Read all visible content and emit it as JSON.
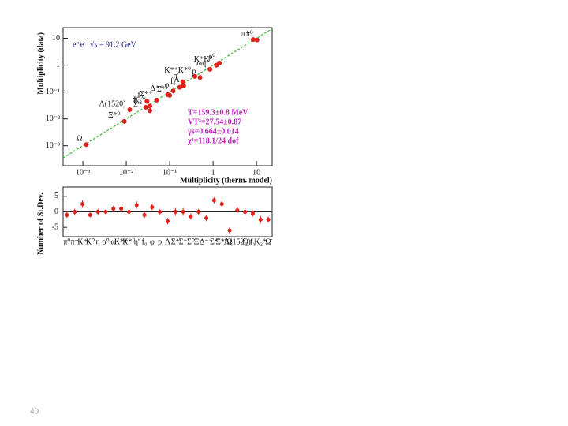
{
  "page_number": "40",
  "chart_data": [
    {
      "type": "scatter",
      "title": "e⁺e⁻ √s = 91.2 GeV",
      "x_label": "Multiplicity (therm. model)",
      "y_label": "Multiplicity (data)",
      "annotations": [
        "T=159.3±0.8 MeV",
        "VT³=27.54±0.87",
        "γs=0.664±0.014",
        "χ²=118.1/24 dof"
      ],
      "xscale": "log",
      "yscale": "log",
      "xlim": [
        0.00035,
        23
      ],
      "ylim": [
        0.00018,
        25
      ],
      "xticks": [
        {
          "value": 0.001,
          "label": "10⁻³"
        },
        {
          "value": 0.01,
          "label": "10⁻²"
        },
        {
          "value": 0.1,
          "label": "10⁻¹"
        },
        1,
        10
      ],
      "yticks": [
        {
          "value": 0.001,
          "label": "10⁻³"
        },
        {
          "value": 0.01,
          "label": "10⁻²"
        },
        {
          "value": 0.1,
          "label": "10⁻¹"
        },
        1,
        10
      ],
      "color": "#e0201b",
      "line_color": "#3cb832",
      "labels": [
        "π⁺",
        "π⁰",
        "K⁺K⁰",
        "ρ⁰",
        "ωη",
        "K*⁺K*⁰",
        "η'",
        "p",
        "Λ",
        "f₀",
        "φ",
        "Σ⁺",
        "Δ⁺⁺",
        "Σ*⁺",
        "K₂*",
        "f₂",
        "Ξ⁻",
        "Σ*⁻",
        "Λ(1520)",
        "Ξ*⁰",
        "Ω"
      ],
      "x": [
        8.4,
        10.3,
        1.2,
        1.4,
        0.85,
        0.38,
        0.2,
        0.5,
        0.21,
        0.17,
        0.12,
        0.1,
        0.09,
        0.05,
        0.035,
        0.03,
        0.028,
        0.035,
        0.012,
        0.009,
        0.0012
      ],
      "values": [
        9.0,
        8.7,
        1.0,
        1.2,
        0.7,
        0.38,
        0.24,
        0.35,
        0.17,
        0.15,
        0.11,
        0.075,
        0.08,
        0.05,
        0.03,
        0.045,
        0.027,
        0.02,
        0.022,
        0.008,
        0.0011
      ]
    },
    {
      "type": "residual",
      "y_label": "Number of St.Dev.",
      "ylim": [
        -8,
        8
      ],
      "yticks": [
        5,
        0,
        -5
      ],
      "color": "#e0201b",
      "categories": [
        "π⁰",
        "π⁺",
        "K⁺",
        "K⁰",
        "η",
        "ρ⁰",
        "ω",
        "K*⁺",
        "K*⁰",
        "η'",
        "f₀",
        "φ",
        "p",
        "Λ",
        "Σ⁺",
        "Σ⁻",
        "Σ⁰",
        "Ξ⁻",
        "Δ⁺⁺",
        "Σ*",
        "Ξ*⁰",
        "Ω",
        "Λ(1520)",
        "f₂",
        "f₁",
        "K₂*",
        "Ω̄"
      ],
      "values": [
        -1,
        0,
        2.5,
        -1,
        0,
        0,
        1,
        1,
        0,
        2.2,
        -1,
        1.5,
        0,
        -3,
        0,
        0,
        -1.5,
        0,
        -2,
        3.7,
        2.5,
        -6,
        0.5,
        0,
        -0.5,
        -2.5,
        -2.5
      ],
      "errors": [
        1,
        1,
        1.2,
        0.8,
        1,
        0.8,
        1,
        1,
        0.8,
        1.2,
        1,
        1,
        0.8,
        1,
        1.2,
        1.2,
        1,
        1,
        1,
        1,
        1,
        1,
        1,
        1,
        1,
        1.2,
        1
      ]
    }
  ]
}
